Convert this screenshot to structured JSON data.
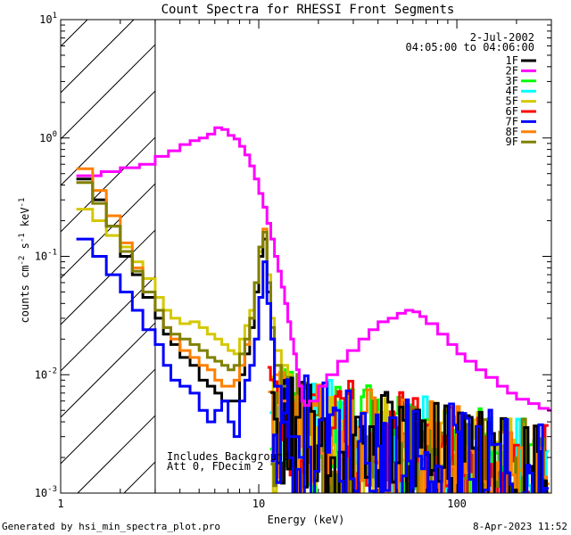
{
  "chart_data": {
    "type": "line",
    "title": "Count Spectra for RHESSI Front Segments",
    "xlabel": "Energy (keV)",
    "ylabel": "counts cm-2 s-1 keV-1",
    "xscale": "log",
    "yscale": "log",
    "xlim": [
      1,
      300
    ],
    "ylim": [
      0.001,
      10
    ],
    "x_ticks": [
      {
        "value": 1,
        "label": "1"
      },
      {
        "value": 10,
        "label": "10"
      },
      {
        "value": 100,
        "label": "100"
      }
    ],
    "y_ticks": [
      {
        "value": 10,
        "label": "10",
        "exp": "1"
      },
      {
        "value": 1,
        "label": "10",
        "exp": "0"
      },
      {
        "value": 0.1,
        "label": "10",
        "exp": "-1"
      },
      {
        "value": 0.01,
        "label": "10",
        "exp": "-2"
      },
      {
        "value": 0.001,
        "label": "10",
        "exp": "-3"
      }
    ],
    "date": "2-Jul-2002",
    "time_range": "04:05:00 to 04:06:00",
    "excluded_region_keV": [
      1,
      3
    ],
    "annotations": [
      "Includes Background",
      "Att 0, FDecim 2"
    ],
    "legend_position": "top-right",
    "series": [
      {
        "name": "1F",
        "color": "#000000"
      },
      {
        "name": "2F",
        "color": "#ff00ff"
      },
      {
        "name": "3F",
        "color": "#00ff00"
      },
      {
        "name": "4F",
        "color": "#00ffff"
      },
      {
        "name": "5F",
        "color": "#d4c800"
      },
      {
        "name": "6F",
        "color": "#ff0000"
      },
      {
        "name": "7F",
        "color": "#0000ff"
      },
      {
        "name": "8F",
        "color": "#ff8000"
      },
      {
        "name": "9F",
        "color": "#808000"
      }
    ],
    "curve_2F": {
      "x": [
        1.2,
        1.6,
        2.0,
        2.5,
        3.0,
        3.5,
        4.0,
        4.5,
        5.0,
        5.5,
        6.0,
        6.5,
        7.0,
        7.5,
        8.0,
        8.5,
        9.0,
        9.5,
        10.0,
        10.5,
        11.0,
        11.5,
        12.0,
        12.5,
        13.0,
        13.5,
        14.0,
        14.5,
        15.0,
        15.5,
        16.0,
        16.5,
        17,
        18,
        20,
        22,
        25,
        28,
        32,
        36,
        40,
        45,
        50,
        55,
        60,
        65,
        70,
        80,
        90,
        100,
        110,
        125,
        140,
        160,
        180,
        200,
        230,
        260,
        290
      ],
      "y": [
        0.48,
        0.52,
        0.56,
        0.6,
        0.7,
        0.78,
        0.88,
        0.95,
        1.0,
        1.08,
        1.22,
        1.18,
        1.05,
        0.98,
        0.85,
        0.72,
        0.58,
        0.45,
        0.34,
        0.26,
        0.19,
        0.14,
        0.1,
        0.075,
        0.055,
        0.04,
        0.028,
        0.02,
        0.015,
        0.011,
        0.008,
        0.006,
        0.0055,
        0.006,
        0.008,
        0.01,
        0.013,
        0.016,
        0.02,
        0.024,
        0.028,
        0.03,
        0.033,
        0.035,
        0.034,
        0.031,
        0.027,
        0.022,
        0.018,
        0.015,
        0.013,
        0.011,
        0.0095,
        0.008,
        0.007,
        0.0062,
        0.0057,
        0.0052,
        0.005
      ]
    },
    "curve_7F": {
      "x": [
        1.2,
        1.45,
        1.7,
        2.0,
        2.3,
        2.6,
        3.0,
        3.3,
        3.6,
        4.0,
        4.5,
        5.0,
        5.5,
        6.0,
        6.5,
        7.0,
        7.5,
        8.0,
        8.5,
        9.0,
        9.5,
        10.0,
        10.5,
        11.0,
        11.5,
        12.0,
        13.0,
        14.0,
        16.0
      ],
      "y": [
        0.14,
        0.1,
        0.07,
        0.05,
        0.035,
        0.024,
        0.018,
        0.012,
        0.009,
        0.008,
        0.007,
        0.005,
        0.004,
        0.005,
        0.006,
        0.004,
        0.003,
        0.006,
        0.009,
        0.012,
        0.02,
        0.045,
        0.09,
        0.04,
        0.02,
        0.008,
        0.004,
        0.003,
        0.002
      ]
    },
    "curve_9F": {
      "x": [
        1.2,
        1.45,
        1.7,
        2.0,
        2.3,
        2.6,
        3.0,
        3.3,
        3.6,
        4.0,
        4.5,
        5.0,
        5.5,
        6.0,
        6.5,
        7.0,
        7.5,
        8.0,
        8.5,
        9.0,
        9.5,
        10.0,
        10.5,
        11.0,
        11.5,
        12.0,
        13.0
      ],
      "y": [
        0.42,
        0.28,
        0.18,
        0.11,
        0.075,
        0.05,
        0.035,
        0.025,
        0.022,
        0.02,
        0.018,
        0.016,
        0.014,
        0.013,
        0.012,
        0.011,
        0.012,
        0.015,
        0.02,
        0.03,
        0.06,
        0.12,
        0.16,
        0.06,
        0.025,
        0.012,
        0.008
      ]
    },
    "curve_5F": {
      "x": [
        1.2,
        1.45,
        1.7,
        2.0,
        2.3,
        2.6,
        3.0,
        3.3,
        3.6,
        4.0,
        4.5,
        5.0,
        5.5,
        6.0,
        6.5,
        7.0,
        7.5,
        8.0,
        8.5,
        9.0,
        9.5,
        10.0,
        10.5,
        11.0,
        11.5,
        12.0,
        13.0,
        14.0
      ],
      "y": [
        0.25,
        0.2,
        0.15,
        0.12,
        0.09,
        0.065,
        0.045,
        0.035,
        0.03,
        0.027,
        0.028,
        0.025,
        0.022,
        0.02,
        0.018,
        0.016,
        0.015,
        0.02,
        0.026,
        0.035,
        0.06,
        0.11,
        0.14,
        0.07,
        0.03,
        0.016,
        0.012,
        0.01
      ]
    },
    "curve_1F": {
      "x": [
        1.2,
        1.45,
        1.7,
        2.0,
        2.3,
        2.6,
        3.0,
        3.3,
        3.6,
        4.0,
        4.5,
        5.0,
        5.5,
        6.0,
        6.5,
        7.0,
        7.5,
        8.0,
        8.5,
        9.0,
        9.5,
        10.0,
        10.5,
        11.0,
        11.5,
        12.0
      ],
      "y": [
        0.45,
        0.3,
        0.18,
        0.1,
        0.07,
        0.045,
        0.03,
        0.022,
        0.018,
        0.014,
        0.012,
        0.009,
        0.008,
        0.007,
        0.006,
        0.006,
        0.006,
        0.01,
        0.015,
        0.025,
        0.05,
        0.1,
        0.14,
        0.05,
        0.02,
        0.008
      ]
    },
    "curve_8F": {
      "x": [
        1.2,
        1.45,
        1.7,
        2.0,
        2.3,
        2.6,
        3.0,
        3.3,
        3.6,
        4.0,
        4.5,
        5.0,
        5.5,
        6.0,
        6.5,
        7.0,
        7.5,
        8.0,
        8.5,
        9.0,
        9.5,
        10.0,
        10.5,
        11.0,
        11.5,
        12.0,
        13.0
      ],
      "y": [
        0.55,
        0.36,
        0.22,
        0.13,
        0.08,
        0.05,
        0.035,
        0.025,
        0.02,
        0.016,
        0.014,
        0.012,
        0.011,
        0.009,
        0.008,
        0.008,
        0.009,
        0.012,
        0.018,
        0.03,
        0.06,
        0.12,
        0.17,
        0.06,
        0.02,
        0.01,
        0.006
      ]
    },
    "noise_range_keV": [
      11,
      290
    ],
    "noise_level": [
      0.001,
      0.012
    ]
  }
}
